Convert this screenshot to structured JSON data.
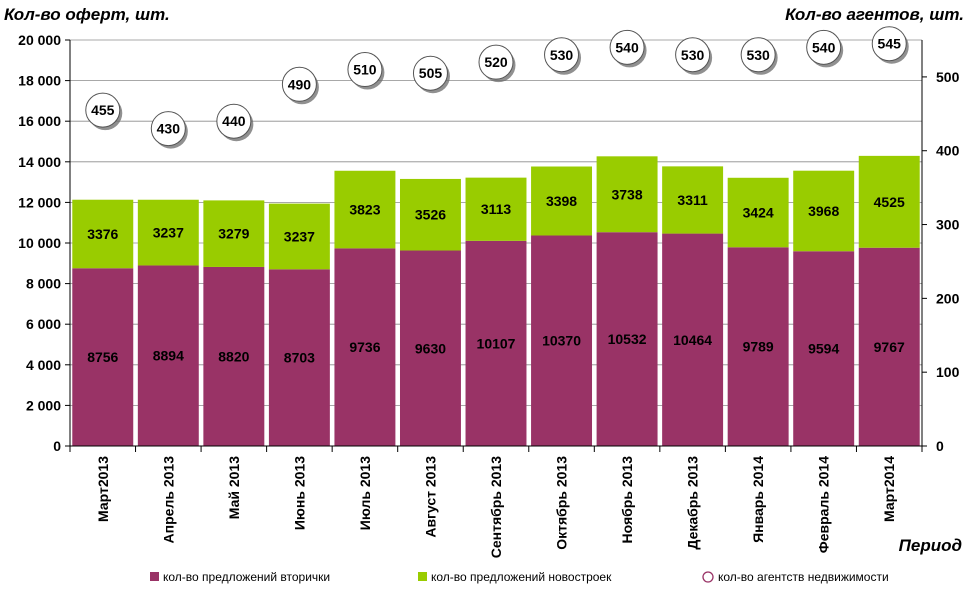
{
  "chart_data": {
    "type": "bar",
    "stacked": true,
    "y_left_title": "Кол-во оферт, шт.",
    "y_right_title": "Кол-во агентов, шт.",
    "x_title": "Период",
    "ylim": [
      0,
      20000
    ],
    "y_ticks": [
      "0",
      "2 000",
      "4 000",
      "6 000",
      "8 000",
      "10 000",
      "12 000",
      "14 000",
      "16 000",
      "18 000",
      "20 000"
    ],
    "y2lim": [
      0,
      550
    ],
    "y2_ticks": [
      "0",
      "100",
      "200",
      "300",
      "400",
      "500"
    ],
    "categories": [
      "Март2013",
      "Апрель 2013",
      "Май 2013",
      "Июнь 2013",
      "Июль 2013",
      "Август 2013",
      "Сентябрь 2013",
      "Октябрь 2013",
      "Ноябрь 2013",
      "Декабрь 2013",
      "Январь 2014",
      "Февраль 2014",
      "Март2014"
    ],
    "series": [
      {
        "name": "кол-во предложений вторички",
        "color": "#993366",
        "values": [
          8756,
          8894,
          8820,
          8703,
          9736,
          9630,
          10107,
          10370,
          10532,
          10464,
          9789,
          9594,
          9767
        ]
      },
      {
        "name": "кол-во предложений новостроек",
        "color": "#99cc00",
        "values": [
          3376,
          3237,
          3279,
          3237,
          3823,
          3526,
          3113,
          3398,
          3738,
          3311,
          3424,
          3968,
          4525
        ]
      },
      {
        "name": "кол-во агентств недвижимости",
        "color": "#993366",
        "axis": "right",
        "values": [
          455,
          430,
          440,
          490,
          510,
          505,
          520,
          530,
          540,
          530,
          530,
          540,
          545
        ]
      }
    ]
  }
}
